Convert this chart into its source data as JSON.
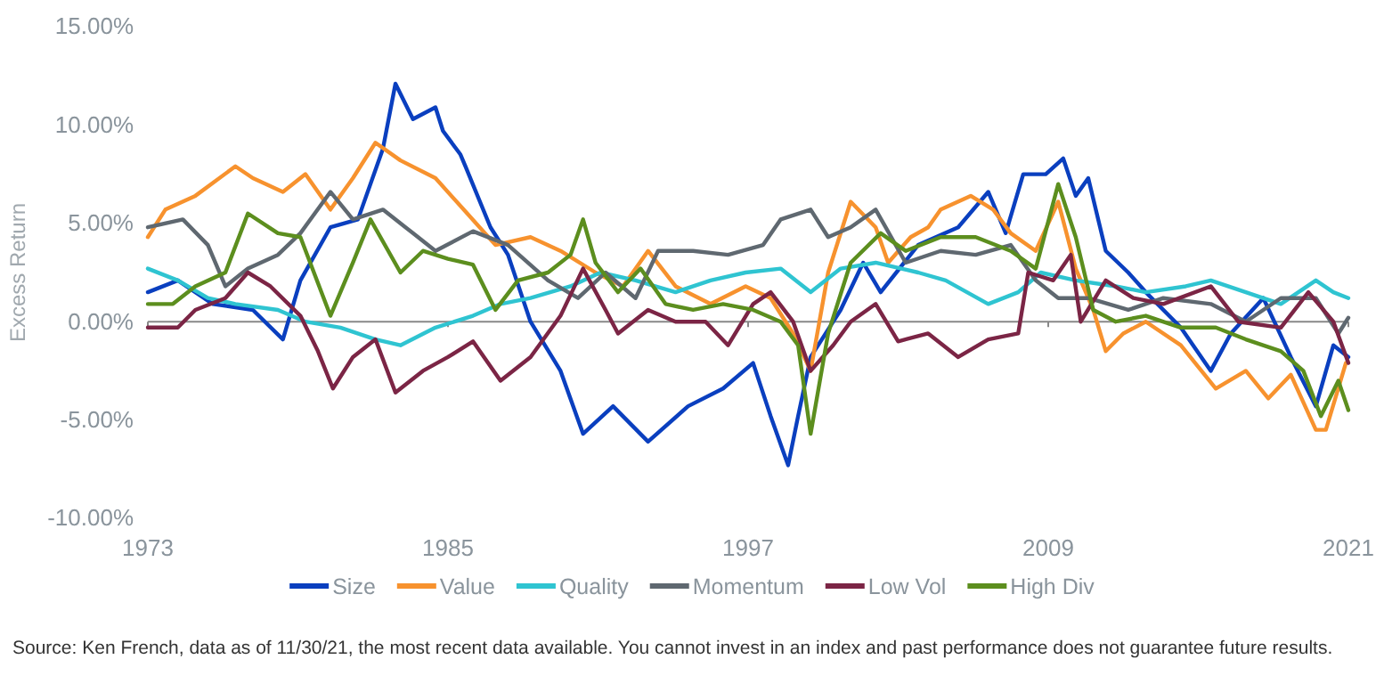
{
  "chart_data": {
    "type": "line",
    "ylabel": "Excess Return",
    "xlim": [
      1973,
      2021
    ],
    "xticks": [
      1973,
      1985,
      1997,
      2009,
      2021
    ],
    "ylim": [
      -10,
      15
    ],
    "yticks": [
      {
        "value": -10,
        "label": "-10.00%"
      },
      {
        "value": -5,
        "label": "-5.00%"
      },
      {
        "value": 0,
        "label": "0.00%"
      },
      {
        "value": 5,
        "label": "5.00%"
      },
      {
        "value": 10,
        "label": "10.00%"
      },
      {
        "value": 15,
        "label": "15.00%"
      }
    ],
    "legend": "bottom",
    "line_style": "solid",
    "marker": "none",
    "annotations": [
      "Source: Ken French, data as of 11/30/21, the most recent data available. You cannot invest in an index and past performance does not guarantee future results."
    ],
    "series": [
      {
        "name": "Size",
        "color": "#0a3fbf",
        "x": [
          1973,
          1974.2,
          1975.6,
          1977.2,
          1978.4,
          1979.1,
          1980.3,
          1981.4,
          1982.4,
          1982.9,
          1983.6,
          1984.5,
          1984.8,
          1985.5,
          1985.7,
          1986.7,
          1987.4,
          1988.3,
          1989.5,
          1990.4,
          1991.6,
          1993.0,
          1994.6,
          1996.0,
          1997.2,
          1997.9,
          1998.6,
          1999.0,
          1999.5,
          2000.7,
          2001.6,
          2002.3,
          2003.8,
          2005.4,
          2006.6,
          2007.3,
          2008.0,
          2008.9,
          2009.6,
          2010.1,
          2010.6,
          2011.3,
          2012.2,
          2012.9,
          2014.3,
          2015.5,
          2016.3,
          2017.6,
          2018.7,
          2019.7,
          2020.4,
          2021.0
        ],
        "values": [
          1.5,
          2.1,
          0.9,
          0.6,
          -0.9,
          2.1,
          4.8,
          5.2,
          8.8,
          12.1,
          10.3,
          10.9,
          9.7,
          8.5,
          7.9,
          4.8,
          3.4,
          0,
          -2.5,
          -5.7,
          -4.3,
          -6.1,
          -4.3,
          -3.4,
          -2.1,
          -4.8,
          -7.3,
          -4.8,
          -1.8,
          0.6,
          3.0,
          1.5,
          3.9,
          4.8,
          6.6,
          4.5,
          7.5,
          7.5,
          8.3,
          6.4,
          7.3,
          3.6,
          2.5,
          1.5,
          -0.3,
          -2.5,
          -0.6,
          1.2,
          -1.8,
          -4.3,
          -1.2,
          -1.8
        ]
      },
      {
        "name": "Value",
        "color": "#f7922e",
        "x": [
          1973,
          1973.7,
          1974.9,
          1976.5,
          1977.2,
          1978.4,
          1979.3,
          1980.3,
          1981.2,
          1982.1,
          1983.1,
          1984.5,
          1985.7,
          1986.9,
          1988.3,
          1989.5,
          1990.9,
          1992.0,
          1993.0,
          1994.1,
          1995.5,
          1996.9,
          1997.9,
          1998.8,
          1999.5,
          2000.2,
          2001.1,
          2002.1,
          2002.6,
          2003.5,
          2004.2,
          2004.7,
          2005.9,
          2006.8,
          2007.5,
          2008.5,
          2009.4,
          2010.1,
          2010.8,
          2011.3,
          2012.0,
          2012.9,
          2014.3,
          2015.7,
          2016.9,
          2017.8,
          2018.7,
          2019.7,
          2020.1,
          2020.9
        ],
        "values": [
          4.3,
          5.7,
          6.4,
          7.9,
          7.3,
          6.6,
          7.5,
          5.7,
          7.3,
          9.1,
          8.2,
          7.3,
          5.6,
          3.9,
          4.3,
          3.6,
          2.5,
          1.8,
          3.6,
          1.8,
          0.9,
          1.8,
          1.2,
          -0.6,
          -2.5,
          2.5,
          6.1,
          4.8,
          3.0,
          4.3,
          4.8,
          5.7,
          6.4,
          5.7,
          4.5,
          3.6,
          6.1,
          2.7,
          0.6,
          -1.5,
          -0.6,
          0,
          -1.2,
          -3.4,
          -2.5,
          -3.9,
          -2.7,
          -5.5,
          -5.5,
          -2.1
        ]
      },
      {
        "name": "Quality",
        "color": "#2fc4d1",
        "x": [
          1973,
          1974.2,
          1975.4,
          1976.5,
          1978.2,
          1979.3,
          1980.7,
          1982.1,
          1983.1,
          1984.5,
          1986.0,
          1987.1,
          1988.3,
          1989.9,
          1991.1,
          1992.5,
          1994.1,
          1995.5,
          1996.9,
          1998.3,
          1999.5,
          2000.7,
          2002.1,
          2003.8,
          2004.9,
          2006.6,
          2007.8,
          2008.7,
          2010.1,
          2011.7,
          2012.9,
          2014.5,
          2015.5,
          2016.9,
          2018.3,
          2019.7,
          2020.4,
          2021.0
        ],
        "values": [
          2.7,
          2.1,
          1.2,
          0.9,
          0.6,
          0,
          -0.3,
          -0.9,
          -1.2,
          -0.3,
          0.3,
          0.9,
          1.2,
          1.8,
          2.5,
          2.1,
          1.5,
          2.1,
          2.5,
          2.7,
          1.5,
          2.7,
          3.0,
          2.5,
          2.1,
          0.9,
          1.5,
          2.5,
          2.1,
          1.8,
          1.5,
          1.8,
          2.1,
          1.5,
          0.9,
          2.1,
          1.5,
          1.2
        ]
      },
      {
        "name": "Momentum",
        "color": "#5f6870",
        "x": [
          1973,
          1974.4,
          1975.4,
          1976.1,
          1977.0,
          1978.2,
          1979.1,
          1980.3,
          1981.2,
          1982.4,
          1983.6,
          1984.5,
          1986.0,
          1987.4,
          1989.0,
          1990.2,
          1991.3,
          1992.5,
          1993.4,
          1994.8,
          1996.2,
          1997.6,
          1998.3,
          1999.5,
          2000.2,
          2001.1,
          2002.1,
          2003.3,
          2004.7,
          2006.1,
          2007.5,
          2008.5,
          2009.4,
          2010.6,
          2012.2,
          2013.6,
          2015.5,
          2016.9,
          2018.3,
          2019.7,
          2020.6,
          2021.0
        ],
        "values": [
          4.8,
          5.2,
          3.9,
          1.8,
          2.7,
          3.4,
          4.5,
          6.6,
          5.2,
          5.7,
          4.5,
          3.6,
          4.6,
          3.9,
          2.1,
          1.2,
          2.5,
          1.2,
          3.6,
          3.6,
          3.4,
          3.9,
          5.2,
          5.7,
          4.3,
          4.8,
          5.7,
          3.0,
          3.6,
          3.4,
          3.9,
          2.1,
          1.2,
          1.2,
          0.6,
          1.2,
          0.9,
          0,
          1.2,
          1.2,
          -0.6,
          0.2
        ]
      },
      {
        "name": "Low Vol",
        "color": "#7b2545",
        "x": [
          1973,
          1974.2,
          1974.9,
          1976.1,
          1977.0,
          1977.9,
          1979.1,
          1979.8,
          1980.4,
          1981.2,
          1982.1,
          1982.9,
          1984.0,
          1985.0,
          1986.0,
          1987.1,
          1988.3,
          1989.5,
          1990.4,
          1991.3,
          1991.8,
          1993.0,
          1994.1,
          1995.3,
          1996.2,
          1997.2,
          1997.9,
          1998.8,
          1999.5,
          2000.4,
          2001.1,
          2002.1,
          2003.0,
          2004.2,
          2005.4,
          2006.6,
          2007.8,
          2008.2,
          2009.2,
          2009.9,
          2010.3,
          2011.3,
          2012.4,
          2013.6,
          2015.5,
          2016.6,
          2018.3,
          2019.4,
          2020.4,
          2021.0
        ],
        "values": [
          -0.3,
          -0.3,
          0.6,
          1.2,
          2.5,
          1.8,
          0.3,
          -1.5,
          -3.4,
          -1.8,
          -0.9,
          -3.6,
          -2.5,
          -1.8,
          -1.0,
          -3.0,
          -1.8,
          0.3,
          2.7,
          0.6,
          -0.6,
          0.6,
          0,
          0,
          -1.2,
          0.9,
          1.5,
          0,
          -2.5,
          -1.2,
          0,
          0.9,
          -1.0,
          -0.6,
          -1.8,
          -0.9,
          -0.6,
          2.5,
          2.1,
          3.4,
          0,
          2.1,
          1.2,
          0.9,
          1.8,
          0,
          -0.3,
          1.5,
          0,
          -2.1
        ]
      },
      {
        "name": "High Div",
        "color": "#5c8e1e",
        "x": [
          1973,
          1974.0,
          1974.9,
          1976.1,
          1977.0,
          1978.2,
          1979.1,
          1980.3,
          1981.2,
          1981.9,
          1983.1,
          1984.0,
          1985.0,
          1986.0,
          1986.9,
          1987.8,
          1989.0,
          1989.9,
          1990.4,
          1990.9,
          1991.8,
          1992.7,
          1993.7,
          1994.8,
          1996.0,
          1997.2,
          1998.3,
          1999.0,
          1999.5,
          2000.2,
          2001.1,
          2002.3,
          2003.3,
          2004.7,
          2006.1,
          2007.5,
          2008.5,
          2009.4,
          2010.1,
          2010.8,
          2011.7,
          2012.9,
          2014.3,
          2015.7,
          2016.9,
          2018.3,
          2019.2,
          2019.9,
          2020.6,
          2021.0
        ],
        "values": [
          0.9,
          0.9,
          1.8,
          2.5,
          5.5,
          4.5,
          4.3,
          0.3,
          3.0,
          5.2,
          2.5,
          3.6,
          3.2,
          2.9,
          0.6,
          2.1,
          2.5,
          3.4,
          5.2,
          3.0,
          1.5,
          2.7,
          0.9,
          0.6,
          0.9,
          0.6,
          0,
          -1.2,
          -5.7,
          -0.6,
          3.0,
          4.5,
          3.6,
          4.3,
          4.3,
          3.6,
          2.7,
          7.0,
          4.3,
          0.6,
          0,
          0.3,
          -0.3,
          -0.3,
          -0.9,
          -1.5,
          -2.5,
          -4.8,
          -3.0,
          -4.5
        ]
      }
    ]
  }
}
